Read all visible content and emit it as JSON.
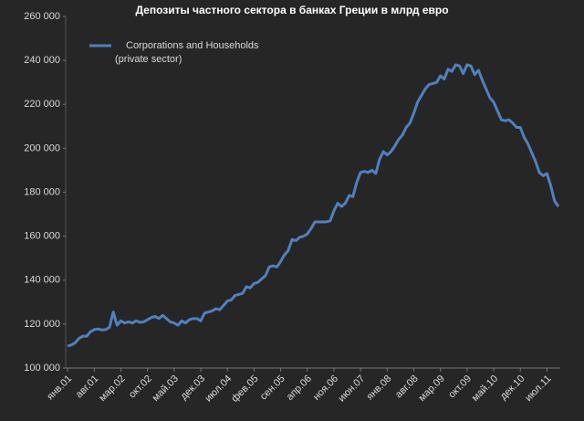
{
  "chart_data": {
    "type": "line",
    "title": "Депозиты частного сектора в банках Греции в млрд евро",
    "categories": [
      "янв.01",
      null,
      null,
      null,
      null,
      null,
      null,
      "авг.01",
      null,
      null,
      null,
      null,
      null,
      null,
      "мар.02",
      null,
      null,
      null,
      null,
      null,
      null,
      "окт.02",
      null,
      null,
      null,
      null,
      null,
      null,
      "май.03",
      null,
      null,
      null,
      null,
      null,
      null,
      "дек.03",
      null,
      null,
      null,
      null,
      null,
      null,
      "июл.04",
      null,
      null,
      null,
      null,
      null,
      null,
      "фев.05",
      null,
      null,
      null,
      null,
      null,
      null,
      "сен.05",
      null,
      null,
      null,
      null,
      null,
      null,
      "апр.06",
      null,
      null,
      null,
      null,
      null,
      null,
      "ноя.06",
      null,
      null,
      null,
      null,
      null,
      null,
      "июн.07",
      null,
      null,
      null,
      null,
      null,
      null,
      "янв.08",
      null,
      null,
      null,
      null,
      null,
      null,
      "авг.08",
      null,
      null,
      null,
      null,
      null,
      null,
      "мар.09",
      null,
      null,
      null,
      null,
      null,
      null,
      "окт.09",
      null,
      null,
      null,
      null,
      null,
      null,
      "май.10",
      null,
      null,
      null,
      null,
      null,
      null,
      "дек.10",
      null,
      null,
      null,
      null,
      null,
      null,
      "июл.11",
      null,
      null,
      null
    ],
    "series": [
      {
        "name": "Corporations and Households (private sector)",
        "color": "#4f81bd",
        "values": [
          110000,
          110500,
          111500,
          113500,
          114500,
          114500,
          116500,
          117500,
          117800,
          117300,
          117500,
          118500,
          125500,
          119500,
          121500,
          120500,
          121000,
          120500,
          121500,
          120800,
          121000,
          122000,
          123000,
          123500,
          122500,
          124000,
          122500,
          121000,
          120500,
          119500,
          121500,
          120500,
          122000,
          122500,
          122500,
          121500,
          125000,
          125500,
          126000,
          127000,
          126500,
          128500,
          130500,
          131000,
          133000,
          133500,
          134000,
          137000,
          136500,
          138500,
          139000,
          140500,
          142000,
          146000,
          146500,
          146000,
          148500,
          151500,
          153500,
          158500,
          158000,
          159500,
          160000,
          161000,
          163500,
          166500,
          166500,
          166500,
          166500,
          167000,
          171500,
          175000,
          173500,
          175000,
          178500,
          178000,
          184500,
          189000,
          189500,
          189000,
          190000,
          188500,
          195000,
          198500,
          197000,
          198500,
          201000,
          204000,
          206000,
          209500,
          211500,
          216000,
          221000,
          224000,
          227000,
          229000,
          229500,
          230000,
          233000,
          231500,
          236000,
          235000,
          238000,
          237500,
          234000,
          238000,
          237500,
          233500,
          235500,
          231000,
          227000,
          223000,
          221000,
          217000,
          213000,
          212500,
          213000,
          211500,
          209500,
          209500,
          205000,
          202000,
          198000,
          194000,
          189000,
          187500,
          188500,
          183000,
          176000,
          173500
        ]
      }
    ],
    "ylim": [
      100000,
      260000
    ],
    "yticks": [
      {
        "value": 100000,
        "label": "100 000"
      },
      {
        "value": 120000,
        "label": "120 000"
      },
      {
        "value": 140000,
        "label": "140 000"
      },
      {
        "value": 160000,
        "label": "160 000"
      },
      {
        "value": 180000,
        "label": "180 000"
      },
      {
        "value": 200000,
        "label": "200 000"
      },
      {
        "value": 220000,
        "label": "220 000"
      },
      {
        "value": 240000,
        "label": "240 000"
      },
      {
        "value": 260000,
        "label": "260 000"
      }
    ],
    "grid": false,
    "legend": "top-left"
  }
}
